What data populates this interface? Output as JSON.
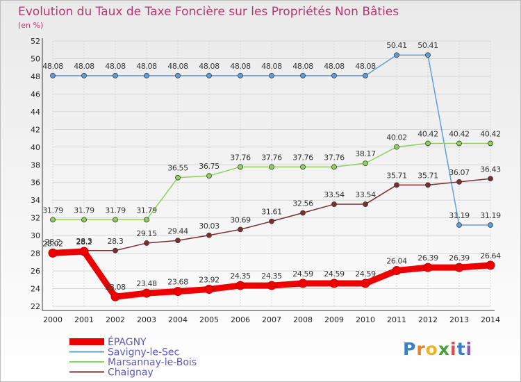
{
  "chart_data": {
    "type": "line",
    "title": "Evolution du Taux de Taxe Foncière sur les Propriétés Non Bâties",
    "subtitle": "(en %)",
    "xlabel": "",
    "ylabel": "",
    "ylim": [
      22,
      52
    ],
    "yticks": [
      22,
      24,
      26,
      28,
      30,
      32,
      34,
      36,
      38,
      40,
      42,
      44,
      46,
      48,
      50,
      52
    ],
    "categories": [
      "2000",
      "2001",
      "2002",
      "2003",
      "2004",
      "2005",
      "2006",
      "2007",
      "2008",
      "2009",
      "2010",
      "2011",
      "2012",
      "2013",
      "2014"
    ],
    "grid": true,
    "legend": "bottom-left",
    "series": [
      {
        "name": "Savigny-le-Sec",
        "color": "#5f9ed6",
        "values": [
          48.08,
          48.08,
          48.08,
          48.08,
          48.08,
          48.08,
          48.08,
          48.08,
          48.08,
          48.08,
          48.08,
          50.41,
          50.41,
          31.19,
          31.19
        ],
        "labels": [
          "48.08",
          "48.08",
          "48.08",
          "48.08",
          "48.08",
          "48.08",
          "48.08",
          "48.08",
          "48.08",
          "48.08",
          "48.08",
          "50.41",
          "50.41",
          "31.19",
          "31.19"
        ]
      },
      {
        "name": "Marsannay-le-Bois",
        "color": "#8fd15a",
        "values": [
          31.79,
          31.79,
          31.79,
          31.79,
          36.55,
          36.75,
          37.76,
          37.76,
          37.76,
          37.76,
          38.17,
          40.02,
          40.42,
          40.42,
          40.42
        ],
        "labels": [
          "31.79",
          "31.79",
          "31.79",
          "31.79",
          "36.55",
          "36.75",
          "37.76",
          "37.76",
          "37.76",
          "37.76",
          "38.17",
          "40.02",
          "40.42",
          "40.42",
          "40.42"
        ]
      },
      {
        "name": "Chaignay",
        "color": "#7b2f2f",
        "values": [
          28.2,
          28.3,
          28.3,
          29.15,
          29.44,
          30.03,
          30.69,
          31.61,
          32.56,
          33.54,
          33.54,
          35.71,
          35.71,
          36.07,
          36.43
        ],
        "labels": [
          "28.2",
          "28.3",
          "28.3",
          "29.15",
          "29.44",
          "30.03",
          "30.69",
          "31.61",
          "32.56",
          "33.54",
          "33.54",
          "35.71",
          "35.71",
          "36.07",
          "36.43"
        ]
      },
      {
        "name": "ÉPAGNY",
        "color": "#ee0000",
        "values": [
          28.02,
          28.2,
          23.08,
          23.48,
          23.68,
          23.92,
          24.35,
          24.35,
          24.59,
          24.59,
          24.59,
          26.04,
          26.39,
          26.39,
          26.64
        ],
        "labels": [
          "28.02",
          "28.2",
          "23.08",
          "23.48",
          "23.68",
          "23.92",
          "24.35",
          "24.35",
          "24.59",
          "24.59",
          "24.59",
          "26.04",
          "26.39",
          "26.39",
          "26.64"
        ]
      }
    ],
    "legend_entries": [
      "ÉPAGNY",
      "Savigny-le-Sec",
      "Marsannay-le-Bois",
      "Chaignay"
    ]
  },
  "logo": {
    "letters": [
      "P",
      "r",
      "o",
      "x",
      "i",
      "t",
      "i"
    ]
  }
}
